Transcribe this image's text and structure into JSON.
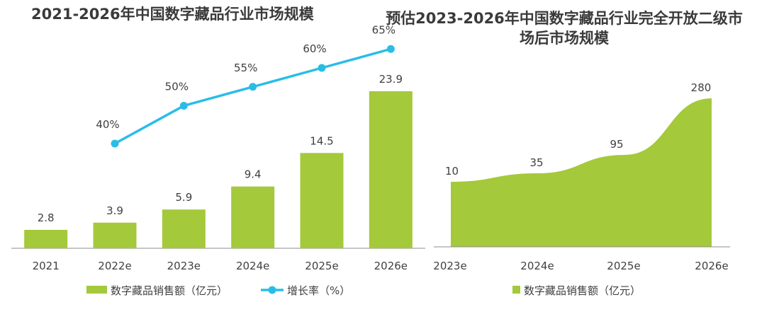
{
  "chart_data": [
    {
      "type": "bar",
      "title": "2021-2026年中国数字藏品行业市场规模",
      "categories": [
        "2021",
        "2022e",
        "2023e",
        "2024e",
        "2025e",
        "2026e"
      ],
      "series": [
        {
          "name": "数字藏品销售额（亿元）",
          "type": "bar",
          "color": "#a4c93a",
          "values": [
            2.8,
            3.9,
            5.9,
            9.4,
            14.5,
            23.9
          ],
          "labels": [
            "2.8",
            "3.9",
            "5.9",
            "9.4",
            "14.5",
            "23.9"
          ]
        },
        {
          "name": "增长率（%）",
          "type": "line",
          "color": "#29bde6",
          "values": [
            null,
            40,
            50,
            55,
            60,
            65
          ],
          "labels": [
            "",
            "40%",
            "50%",
            "55%",
            "60%",
            "65%"
          ]
        }
      ],
      "ylim": [
        0,
        25
      ],
      "y2lim": [
        0,
        70
      ],
      "legend": "bottom"
    },
    {
      "type": "area",
      "title": "预估2023-2026年中国数字藏品行业完全开放二级市场后市场规模",
      "categories": [
        "2023e",
        "2024e",
        "2025e",
        "2026e"
      ],
      "series": [
        {
          "name": "数字藏品销售额（亿元）",
          "color": "#a4c93a",
          "values": [
            10,
            35,
            95,
            280
          ],
          "labels": [
            "10",
            "35",
            "95",
            "280"
          ]
        }
      ],
      "legend": "bottom"
    }
  ]
}
